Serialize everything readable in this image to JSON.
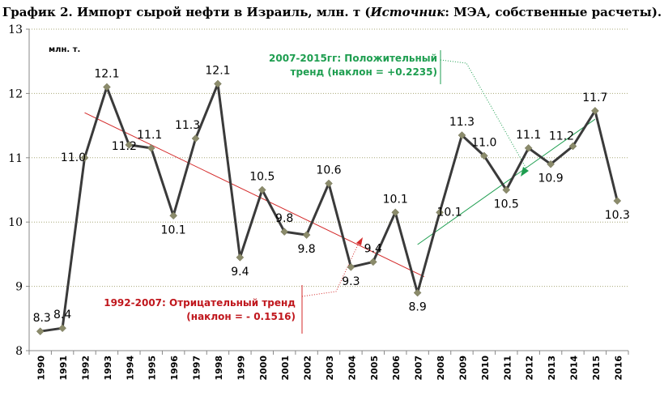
{
  "title": {
    "prefix": "График 2. Импорт сырой нефти в Израиль, млн. т (",
    "source_word": "Источник",
    "suffix": ": МЭА, собственные расчеты)."
  },
  "unit_label": "млн. т.",
  "annotations": {
    "negative_line1": "1992-2007: Отрицательный тренд",
    "negative_line2": "(наклон = - 0.1516)",
    "positive_line1": "2007-2015гг: Положительный",
    "positive_line2": "тренд (наклон = +0.2235)"
  },
  "colors": {
    "series": "#3a3a3a",
    "marker": "#8b8b6b",
    "negative_trend": "#d42a2a",
    "positive_trend": "#1e9e50",
    "grid": "#a8a878"
  },
  "chart_data": {
    "type": "line",
    "x": [
      "1990",
      "1991",
      "1992",
      "1993",
      "1994",
      "1995",
      "1996",
      "1997",
      "1998",
      "1999",
      "2000",
      "2001",
      "2002",
      "2003",
      "2004",
      "2005",
      "2006",
      "2007",
      "2008",
      "2009",
      "2010",
      "2011",
      "2012",
      "2013",
      "2014",
      "2015",
      "2016"
    ],
    "values": [
      8.3,
      8.35,
      11.0,
      12.1,
      11.2,
      11.15,
      10.1,
      11.3,
      12.15,
      9.45,
      10.5,
      9.85,
      9.8,
      10.6,
      9.3,
      9.38,
      10.15,
      8.9,
      10.15,
      11.35,
      11.03,
      10.5,
      11.15,
      10.9,
      11.18,
      11.73,
      10.33
    ],
    "labels": [
      "8.3",
      "8.4",
      "11.0",
      "12.1",
      "11.2",
      "11.1",
      "10.1",
      "11.3",
      "12.1",
      "9.4",
      "10.5",
      "9.8",
      "9.8",
      "10.6",
      "9.3",
      "9.4",
      "10.1",
      "8.9",
      "10.1",
      "11.3",
      "11.0",
      "10.5",
      "11.1",
      "10.9",
      "11.2",
      "11.7",
      "10.3"
    ],
    "ylim": [
      8,
      13
    ],
    "yticks": [
      "8",
      "9",
      "10",
      "11",
      "12",
      "13"
    ],
    "grid": true,
    "trend_negative": {
      "from_year": "1992",
      "to_year": "2007",
      "slope": -0.1516,
      "start_value": 11.7,
      "end_value": 9.15
    },
    "trend_positive": {
      "from_year": "2007",
      "to_year": "2015",
      "slope": 0.2235,
      "start_value": 9.65,
      "end_value": 11.6
    }
  }
}
